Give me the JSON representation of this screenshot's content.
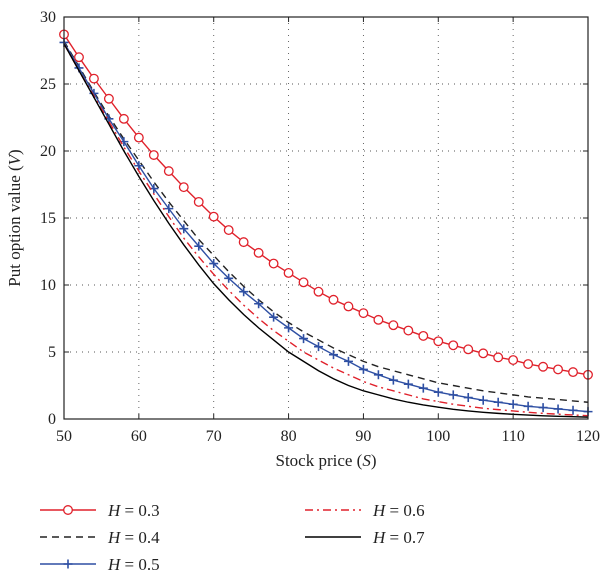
{
  "chart_data": {
    "type": "line",
    "xlabel": {
      "text": "Stock price (",
      "var": "S",
      "close": ")"
    },
    "ylabel": {
      "text": "Put option value (",
      "var": "V",
      "close": ")"
    },
    "xlim": [
      50,
      120
    ],
    "ylim": [
      0,
      30
    ],
    "xticks": [
      50,
      60,
      70,
      80,
      90,
      100,
      110,
      120
    ],
    "yticks": [
      0,
      5,
      10,
      15,
      20,
      25,
      30
    ],
    "grid": true,
    "legend_position": "bottom",
    "x": [
      50,
      52,
      54,
      56,
      58,
      60,
      62,
      64,
      66,
      68,
      70,
      72,
      74,
      76,
      78,
      80,
      82,
      84,
      86,
      88,
      90,
      92,
      94,
      96,
      98,
      100,
      102,
      104,
      106,
      108,
      110,
      112,
      114,
      116,
      118,
      120
    ],
    "series": [
      {
        "name": "H = 0.3",
        "color": "#e0212b",
        "style": "solid",
        "marker": "circle",
        "values": [
          28.7,
          27.0,
          25.4,
          23.9,
          22.4,
          21.0,
          19.7,
          18.5,
          17.3,
          16.2,
          15.1,
          14.1,
          13.2,
          12.4,
          11.6,
          10.9,
          10.2,
          9.5,
          8.9,
          8.4,
          7.9,
          7.4,
          7.0,
          6.6,
          6.2,
          5.8,
          5.5,
          5.2,
          4.9,
          4.6,
          4.4,
          4.1,
          3.9,
          3.7,
          3.5,
          3.3
        ]
      },
      {
        "name": "H = 0.4",
        "color": "#222222",
        "style": "dashed",
        "marker": "none",
        "values": [
          28.2,
          26.3,
          24.4,
          22.6,
          20.9,
          19.3,
          17.7,
          16.2,
          14.8,
          13.4,
          12.2,
          11.0,
          9.9,
          8.9,
          8.0,
          7.2,
          6.5,
          5.9,
          5.3,
          4.8,
          4.3,
          3.9,
          3.6,
          3.3,
          3.0,
          2.7,
          2.5,
          2.3,
          2.1,
          1.95,
          1.8,
          1.65,
          1.55,
          1.45,
          1.35,
          1.25
        ]
      },
      {
        "name": "H = 0.5",
        "color": "#2e4fa3",
        "style": "solid",
        "marker": "plus",
        "values": [
          28.1,
          26.2,
          24.3,
          22.4,
          20.7,
          18.9,
          17.2,
          15.7,
          14.2,
          12.9,
          11.6,
          10.5,
          9.5,
          8.6,
          7.6,
          6.8,
          6.0,
          5.4,
          4.8,
          4.3,
          3.7,
          3.3,
          2.9,
          2.6,
          2.3,
          2.0,
          1.8,
          1.6,
          1.4,
          1.25,
          1.1,
          0.95,
          0.85,
          0.75,
          0.65,
          0.55
        ]
      },
      {
        "name": "H = 0.6",
        "color": "#e0212b",
        "style": "dashdot",
        "marker": "none",
        "values": [
          28.0,
          26.0,
          24.1,
          22.2,
          20.3,
          18.5,
          16.8,
          15.1,
          13.5,
          12.1,
          10.8,
          9.6,
          8.5,
          7.5,
          6.6,
          5.8,
          5.0,
          4.4,
          3.8,
          3.3,
          2.8,
          2.4,
          2.1,
          1.8,
          1.5,
          1.3,
          1.1,
          0.95,
          0.8,
          0.7,
          0.6,
          0.5,
          0.42,
          0.36,
          0.3,
          0.25
        ]
      },
      {
        "name": "H = 0.7",
        "color": "#000000",
        "style": "solid",
        "marker": "none",
        "values": [
          28.0,
          26.0,
          24.0,
          22.0,
          20.0,
          18.1,
          16.3,
          14.6,
          13.0,
          11.5,
          10.1,
          8.9,
          7.8,
          6.8,
          5.9,
          5.0,
          4.3,
          3.6,
          3.0,
          2.5,
          2.1,
          1.8,
          1.5,
          1.25,
          1.05,
          0.88,
          0.72,
          0.6,
          0.5,
          0.42,
          0.35,
          0.29,
          0.24,
          0.2,
          0.17,
          0.14
        ]
      }
    ]
  }
}
